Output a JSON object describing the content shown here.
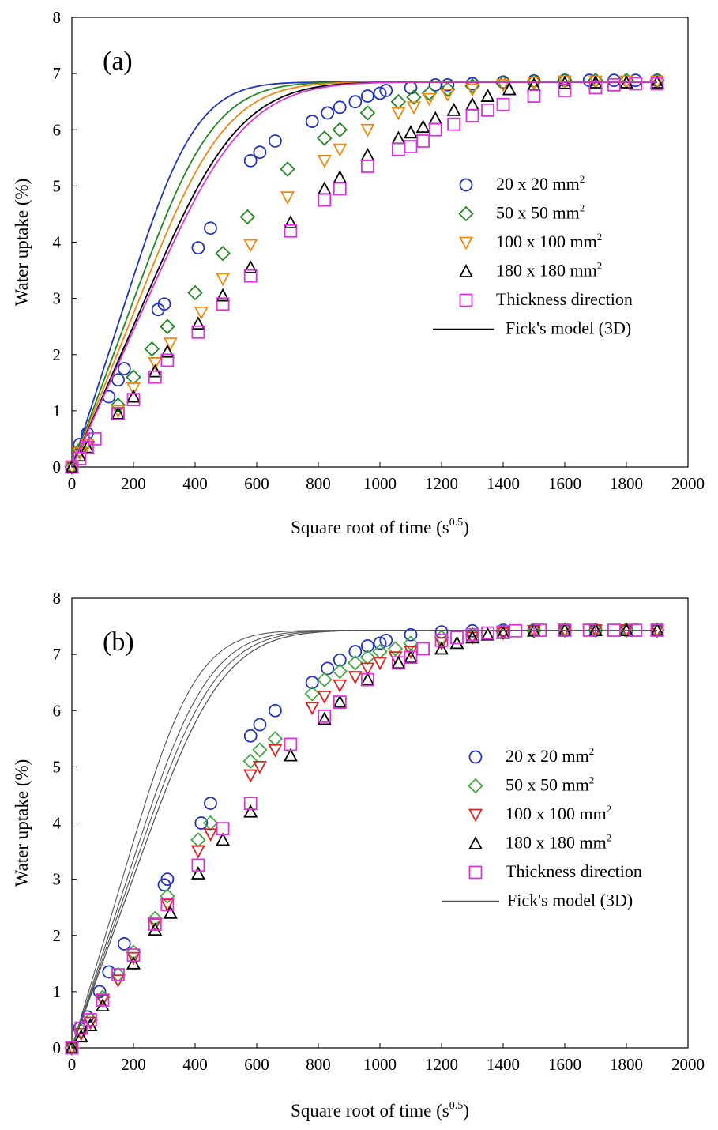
{
  "chart_data": [
    {
      "type": "scatter",
      "panel_label": "(a)",
      "xlabel": "Square root of time (s",
      "xlabel_sup": "0.5",
      "xlabel_end": ")",
      "ylabel": "Water uptake (%)",
      "xlim": [
        0,
        2000
      ],
      "ylim": [
        0,
        8
      ],
      "x_ticks": [
        0,
        200,
        400,
        600,
        800,
        1000,
        1200,
        1400,
        1600,
        1800,
        2000
      ],
      "y_ticks": [
        0,
        1,
        2,
        3,
        4,
        5,
        6,
        7,
        8
      ],
      "grid": false,
      "legend_position": "right-middle",
      "series": [
        {
          "name": "20 x 20 mm",
          "name_sup": "2",
          "marker": "circle",
          "color": "#2233bb",
          "x": [
            0,
            25,
            50,
            120,
            150,
            170,
            280,
            300,
            410,
            450,
            580,
            610,
            660,
            780,
            830,
            870,
            920,
            960,
            1000,
            1020,
            1100,
            1180,
            1220,
            1300,
            1400,
            1500,
            1600,
            1680,
            1760,
            1830,
            1900
          ],
          "y": [
            0,
            0.4,
            0.6,
            1.25,
            1.55,
            1.75,
            2.8,
            2.9,
            3.9,
            4.25,
            5.45,
            5.6,
            5.8,
            6.15,
            6.3,
            6.4,
            6.5,
            6.6,
            6.65,
            6.7,
            6.75,
            6.8,
            6.8,
            6.82,
            6.85,
            6.87,
            6.88,
            6.88,
            6.88,
            6.88,
            6.88
          ],
          "fit_D": 1.2e-06
        },
        {
          "name": "50 x 50 mm",
          "name_sup": "2",
          "marker": "diamond",
          "color": "#228822",
          "x": [
            0,
            25,
            50,
            150,
            200,
            260,
            310,
            400,
            490,
            570,
            700,
            820,
            870,
            960,
            1060,
            1110,
            1160,
            1220,
            1300,
            1400,
            1500,
            1600,
            1700,
            1800,
            1900
          ],
          "y": [
            0,
            0.3,
            0.45,
            1.1,
            1.6,
            2.1,
            2.5,
            3.1,
            3.8,
            4.45,
            5.3,
            5.85,
            6.0,
            6.3,
            6.5,
            6.58,
            6.65,
            6.72,
            6.78,
            6.83,
            6.86,
            6.88,
            6.88,
            6.88,
            6.88
          ],
          "fit_D": 9.2e-07
        },
        {
          "name": "100 x 100 mm",
          "name_sup": "2",
          "marker": "tri-down",
          "color": "#ee8811",
          "x": [
            0,
            25,
            50,
            150,
            200,
            270,
            320,
            420,
            490,
            580,
            700,
            820,
            870,
            960,
            1060,
            1110,
            1160,
            1220,
            1300,
            1400,
            1500,
            1600,
            1700,
            1800,
            1900
          ],
          "y": [
            0,
            0.25,
            0.4,
            1.0,
            1.4,
            1.85,
            2.2,
            2.75,
            3.35,
            3.95,
            4.8,
            5.45,
            5.65,
            6.0,
            6.3,
            6.4,
            6.55,
            6.63,
            6.72,
            6.8,
            6.84,
            6.86,
            6.86,
            6.86,
            6.86
          ],
          "fit_D": 7.8e-07
        },
        {
          "name": "180 x 180 mm",
          "name_sup": "2",
          "marker": "tri-up",
          "color": "#000000",
          "x": [
            0,
            25,
            50,
            150,
            200,
            270,
            310,
            410,
            490,
            580,
            710,
            820,
            870,
            960,
            1060,
            1100,
            1140,
            1180,
            1240,
            1300,
            1350,
            1420,
            1500,
            1600,
            1700,
            1800,
            1900
          ],
          "y": [
            0,
            0.2,
            0.35,
            0.95,
            1.25,
            1.7,
            2.05,
            2.55,
            3.05,
            3.55,
            4.35,
            4.95,
            5.15,
            5.55,
            5.85,
            5.95,
            6.05,
            6.2,
            6.35,
            6.45,
            6.6,
            6.72,
            6.8,
            6.83,
            6.84,
            6.84,
            6.84
          ],
          "fit_D": 6.6e-07
        },
        {
          "name": "Thickness direction",
          "name_sup": "",
          "marker": "square",
          "color": "#dd33dd",
          "x": [
            0,
            25,
            50,
            75,
            150,
            200,
            270,
            310,
            410,
            490,
            580,
            710,
            820,
            870,
            960,
            1060,
            1100,
            1140,
            1180,
            1240,
            1300,
            1350,
            1400,
            1500,
            1600,
            1700,
            1760,
            1830,
            1900
          ],
          "y": [
            0,
            0.15,
            0.35,
            0.5,
            0.95,
            1.2,
            1.6,
            1.9,
            2.4,
            2.9,
            3.4,
            4.2,
            4.75,
            4.95,
            5.35,
            5.65,
            5.7,
            5.8,
            6.0,
            6.1,
            6.25,
            6.35,
            6.45,
            6.6,
            6.7,
            6.75,
            6.8,
            6.82,
            6.82
          ],
          "fit_D": 6.2e-07
        }
      ],
      "fit_legend": "Fick's model (3D)",
      "fit_color": "#000000",
      "fit_Minf": 6.85
    },
    {
      "type": "scatter",
      "panel_label": "(b)",
      "xlabel": "Square root of time (s",
      "xlabel_sup": "0.5",
      "xlabel_end": ")",
      "ylabel": "Water uptake (%)",
      "xlim": [
        0,
        2000
      ],
      "ylim": [
        0,
        8
      ],
      "x_ticks": [
        0,
        200,
        400,
        600,
        800,
        1000,
        1200,
        1400,
        1600,
        1800,
        2000
      ],
      "y_ticks": [
        0,
        1,
        2,
        3,
        4,
        5,
        6,
        7,
        8
      ],
      "grid": false,
      "legend_position": "right-middle",
      "series": [
        {
          "name": "20 x 20 mm",
          "name_sup": "2",
          "marker": "circle",
          "color": "#2233bb",
          "x": [
            0,
            25,
            50,
            90,
            120,
            170,
            300,
            310,
            420,
            450,
            580,
            610,
            660,
            780,
            830,
            870,
            920,
            960,
            1000,
            1020,
            1100,
            1200,
            1300,
            1400,
            1500,
            1600,
            1700,
            1800,
            1900
          ],
          "y": [
            0,
            0.35,
            0.55,
            1.0,
            1.35,
            1.85,
            2.9,
            3.0,
            4.0,
            4.35,
            5.55,
            5.75,
            6.0,
            6.5,
            6.75,
            6.9,
            7.05,
            7.15,
            7.2,
            7.25,
            7.35,
            7.4,
            7.42,
            7.43,
            7.43,
            7.43,
            7.43,
            7.43,
            7.43
          ],
          "fit_D": 1.2e-06
        },
        {
          "name": "50 x 50 mm",
          "name_sup": "2",
          "marker": "diamond",
          "color": "#44aa44",
          "x": [
            0,
            30,
            60,
            100,
            150,
            200,
            270,
            310,
            410,
            450,
            580,
            610,
            660,
            780,
            820,
            870,
            920,
            960,
            1000,
            1050,
            1100,
            1200,
            1300,
            1400,
            1500,
            1600,
            1700,
            1800,
            1900
          ],
          "y": [
            0,
            0.3,
            0.5,
            0.9,
            1.3,
            1.7,
            2.3,
            2.7,
            3.7,
            4.0,
            5.1,
            5.3,
            5.5,
            6.3,
            6.55,
            6.7,
            6.85,
            6.95,
            7.05,
            7.1,
            7.2,
            7.3,
            7.35,
            7.4,
            7.42,
            7.43,
            7.43,
            7.43,
            7.43
          ],
          "fit_D": 1e-06
        },
        {
          "name": "100 x 100 mm",
          "name_sup": "2",
          "marker": "tri-down",
          "color": "#dd2222",
          "x": [
            0,
            30,
            60,
            100,
            150,
            200,
            270,
            310,
            410,
            450,
            580,
            610,
            660,
            780,
            820,
            870,
            920,
            960,
            1000,
            1050,
            1100,
            1200,
            1300,
            1400,
            1500,
            1600,
            1700,
            1800,
            1900
          ],
          "y": [
            0,
            0.25,
            0.45,
            0.85,
            1.2,
            1.6,
            2.2,
            2.55,
            3.5,
            3.8,
            4.85,
            5.0,
            5.3,
            6.05,
            6.25,
            6.45,
            6.6,
            6.75,
            6.85,
            6.95,
            7.05,
            7.2,
            7.3,
            7.38,
            7.42,
            7.43,
            7.43,
            7.43,
            7.43
          ],
          "fit_D": 9e-07
        },
        {
          "name": "180 x 180 mm",
          "name_sup": "2",
          "marker": "tri-up",
          "color": "#000000",
          "x": [
            0,
            30,
            60,
            100,
            200,
            270,
            320,
            410,
            490,
            580,
            710,
            820,
            870,
            960,
            1060,
            1100,
            1200,
            1250,
            1300,
            1350,
            1400,
            1500,
            1600,
            1700,
            1800,
            1900
          ],
          "y": [
            0,
            0.2,
            0.4,
            0.75,
            1.5,
            2.1,
            2.4,
            3.1,
            3.7,
            4.2,
            5.2,
            5.85,
            6.15,
            6.55,
            6.85,
            6.95,
            7.1,
            7.2,
            7.3,
            7.35,
            7.38,
            7.42,
            7.43,
            7.43,
            7.43,
            7.43
          ],
          "fit_D": 8.2e-07
        },
        {
          "name": "Thickness direction",
          "name_sup": "",
          "marker": "square",
          "color": "#dd33dd",
          "x": [
            0,
            30,
            60,
            100,
            150,
            200,
            270,
            310,
            410,
            490,
            580,
            710,
            820,
            870,
            960,
            1060,
            1100,
            1140,
            1200,
            1250,
            1300,
            1350,
            1400,
            1440,
            1520,
            1600,
            1680,
            1760,
            1830,
            1900
          ],
          "y": [
            0,
            0.35,
            0.5,
            0.85,
            1.3,
            1.65,
            2.2,
            2.55,
            3.25,
            3.9,
            4.35,
            5.4,
            5.9,
            6.15,
            6.55,
            6.85,
            6.95,
            7.1,
            7.25,
            7.3,
            7.35,
            7.38,
            7.4,
            7.42,
            7.43,
            7.43,
            7.43,
            7.43,
            7.43,
            7.43
          ],
          "fit_D": 8.2e-07
        }
      ],
      "fit_legend": "Fick's model (3D)",
      "fit_color": "#555555",
      "fit_Minf": 7.43
    }
  ]
}
